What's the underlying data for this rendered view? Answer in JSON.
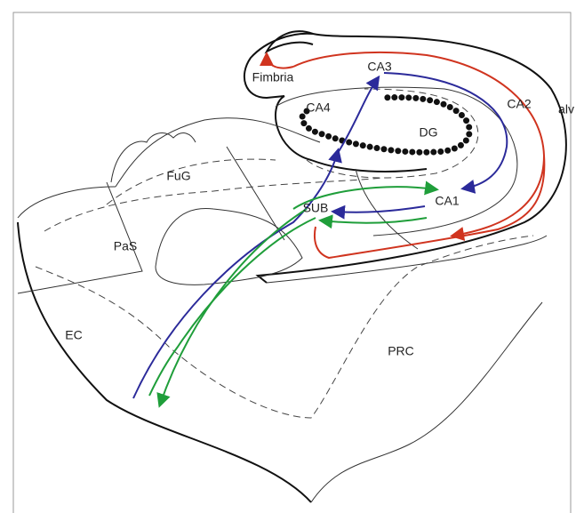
{
  "labels": [
    "Fimbria",
    "CA3",
    "CA4",
    "CA2",
    "alv",
    "DG",
    "FuG",
    "SUB",
    "CA1",
    "PaS",
    "EC",
    "PRC"
  ]
}
